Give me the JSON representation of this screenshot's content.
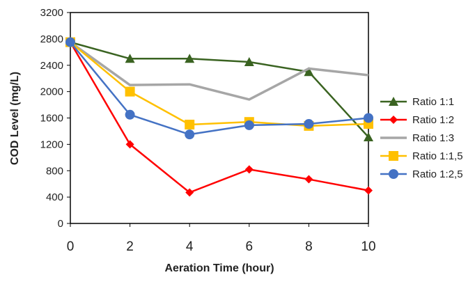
{
  "chart_data": {
    "type": "line",
    "title": "",
    "xlabel": "Aeration Time (hour)",
    "ylabel": "COD Level (mg/L)",
    "x": [
      0,
      2,
      4,
      6,
      8,
      10
    ],
    "xlim": [
      0,
      10
    ],
    "ylim": [
      0,
      3200
    ],
    "xticks": [
      0,
      2,
      4,
      6,
      8,
      10
    ],
    "yticks": [
      0,
      400,
      800,
      1200,
      1600,
      2000,
      2400,
      2800,
      3200
    ],
    "grid": false,
    "legend_position": "right",
    "series": [
      {
        "name": "Ratio 1:1",
        "color": "#3a6321",
        "marker": "triangle",
        "values": [
          2750,
          2500,
          2500,
          2450,
          2300,
          1310
        ]
      },
      {
        "name": "Ratio 1:2",
        "color": "#ff0000",
        "marker": "diamond",
        "values": [
          2750,
          1200,
          470,
          820,
          670,
          500
        ]
      },
      {
        "name": "Ratio 1:3",
        "color": "#a6a6a6",
        "marker": "none",
        "values": [
          2750,
          2100,
          2110,
          1880,
          2350,
          2250
        ]
      },
      {
        "name": "Ratio 1:1,5",
        "color": "#ffc000",
        "marker": "square",
        "values": [
          2750,
          2000,
          1500,
          1540,
          1480,
          1510
        ]
      },
      {
        "name": "Ratio 1:2,5",
        "color": "#4472c4",
        "marker": "circle",
        "values": [
          2750,
          1650,
          1350,
          1490,
          1510,
          1600
        ]
      }
    ]
  }
}
